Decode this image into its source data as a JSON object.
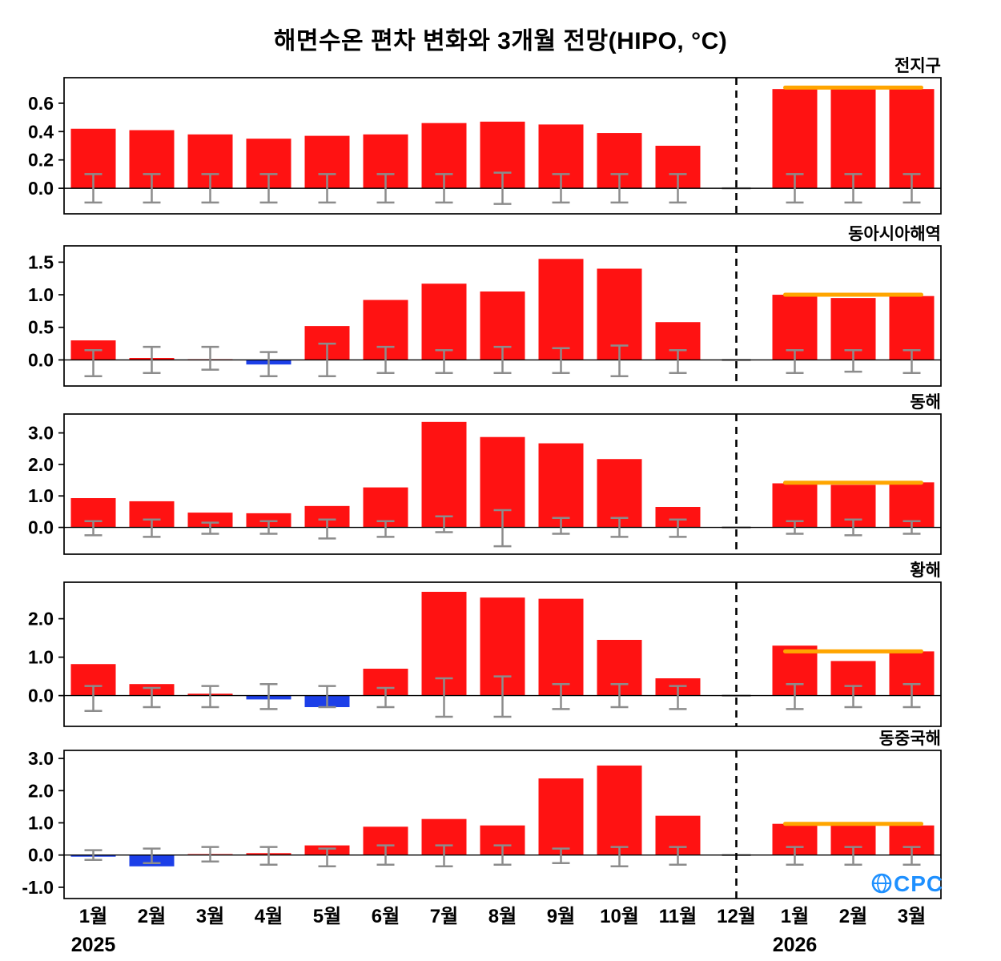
{
  "title": "해면수온 편차 변화와 3개월 전망(HIPO, °C)",
  "logo_text": "CPC",
  "colors": {
    "positive": "#FF1212",
    "negative": "#1C3FE8",
    "error": "#8C8C8C",
    "forecast_line": "#FFA500",
    "axis": "#000000",
    "nodata": "#9A9A9A",
    "logo": "#1E90FF"
  },
  "x_axis": {
    "categories": [
      "1월",
      "2월",
      "3월",
      "4월",
      "5월",
      "6월",
      "7월",
      "8월",
      "9월",
      "10월",
      "11월",
      "12월",
      "1월",
      "2월",
      "3월"
    ],
    "year_left": "2025",
    "year_right": "2026",
    "divider_index": 11
  },
  "chart_data": [
    {
      "type": "bar",
      "label": "전지구",
      "values": [
        0.42,
        0.41,
        0.38,
        0.35,
        0.37,
        0.38,
        0.46,
        0.47,
        0.45,
        0.39,
        0.3,
        null,
        0.7,
        0.7,
        0.7
      ],
      "errors": [
        [
          -0.1,
          0.1
        ],
        [
          -0.1,
          0.1
        ],
        [
          -0.1,
          0.1
        ],
        [
          -0.1,
          0.1
        ],
        [
          -0.1,
          0.1
        ],
        [
          -0.1,
          0.1
        ],
        [
          -0.1,
          0.1
        ],
        [
          -0.11,
          0.11
        ],
        [
          -0.1,
          0.1
        ],
        [
          -0.1,
          0.1
        ],
        [
          -0.1,
          0.1
        ],
        null,
        [
          -0.1,
          0.1
        ],
        [
          -0.1,
          0.1
        ],
        [
          -0.1,
          0.1
        ]
      ],
      "yticks": [
        0.0,
        0.2,
        0.4,
        0.6
      ],
      "ylim": [
        -0.18,
        0.78
      ],
      "forecast_line": 0.71,
      "forecast_start_index": 12
    },
    {
      "type": "bar",
      "label": "동아시아해역",
      "values": [
        0.3,
        0.03,
        0.01,
        -0.07,
        0.52,
        0.92,
        1.17,
        1.05,
        1.55,
        1.4,
        0.58,
        null,
        1.0,
        0.95,
        0.98
      ],
      "errors": [
        [
          -0.25,
          0.15
        ],
        [
          -0.2,
          0.2
        ],
        [
          -0.15,
          0.2
        ],
        [
          -0.25,
          0.12
        ],
        [
          -0.25,
          0.25
        ],
        [
          -0.2,
          0.2
        ],
        [
          -0.2,
          0.15
        ],
        [
          -0.2,
          0.2
        ],
        [
          -0.2,
          0.18
        ],
        [
          -0.25,
          0.22
        ],
        [
          -0.2,
          0.15
        ],
        null,
        [
          -0.2,
          0.15
        ],
        [
          -0.18,
          0.15
        ],
        [
          -0.2,
          0.15
        ]
      ],
      "yticks": [
        0.0,
        0.5,
        1.0,
        1.5
      ],
      "ylim": [
        -0.4,
        1.75
      ],
      "forecast_line": 1.0,
      "forecast_start_index": 12
    },
    {
      "type": "bar",
      "label": "동해",
      "values": [
        0.93,
        0.83,
        0.47,
        0.45,
        0.68,
        1.27,
        3.35,
        2.87,
        2.67,
        2.17,
        0.65,
        null,
        1.4,
        1.35,
        1.43
      ],
      "errors": [
        [
          -0.25,
          0.2
        ],
        [
          -0.3,
          0.25
        ],
        [
          -0.2,
          0.15
        ],
        [
          -0.2,
          0.2
        ],
        [
          -0.35,
          0.25
        ],
        [
          -0.3,
          0.2
        ],
        [
          -0.15,
          0.35
        ],
        [
          -0.6,
          0.55
        ],
        [
          -0.2,
          0.3
        ],
        [
          -0.3,
          0.3
        ],
        [
          -0.3,
          0.25
        ],
        null,
        [
          -0.2,
          0.2
        ],
        [
          -0.25,
          0.25
        ],
        [
          -0.2,
          0.2
        ]
      ],
      "yticks": [
        0.0,
        1.0,
        2.0,
        3.0
      ],
      "ylim": [
        -0.85,
        3.6
      ],
      "forecast_line": 1.42,
      "forecast_start_index": 12
    },
    {
      "type": "bar",
      "label": "황해",
      "values": [
        0.82,
        0.3,
        0.05,
        -0.1,
        -0.3,
        0.7,
        2.7,
        2.55,
        2.52,
        1.45,
        0.45,
        null,
        1.3,
        0.9,
        1.15
      ],
      "errors": [
        [
          -0.4,
          0.25
        ],
        [
          -0.3,
          0.2
        ],
        [
          -0.3,
          0.25
        ],
        [
          -0.35,
          0.3
        ],
        [
          -0.3,
          0.25
        ],
        [
          -0.3,
          0.2
        ],
        [
          -0.55,
          0.45
        ],
        [
          -0.55,
          0.5
        ],
        [
          -0.35,
          0.3
        ],
        [
          -0.3,
          0.3
        ],
        [
          -0.35,
          0.25
        ],
        null,
        [
          -0.35,
          0.3
        ],
        [
          -0.3,
          0.25
        ],
        [
          -0.3,
          0.3
        ]
      ],
      "yticks": [
        0.0,
        1.0,
        2.0
      ],
      "ylim": [
        -0.8,
        2.95
      ],
      "forecast_line": 1.15,
      "forecast_start_index": 12
    },
    {
      "type": "bar",
      "label": "동중국해",
      "values": [
        -0.05,
        -0.35,
        0.03,
        0.06,
        0.3,
        0.88,
        1.12,
        0.92,
        2.38,
        2.78,
        1.22,
        null,
        0.97,
        0.92,
        0.92
      ],
      "errors": [
        [
          -0.15,
          0.15
        ],
        [
          -0.25,
          0.2
        ],
        [
          -0.2,
          0.25
        ],
        [
          -0.3,
          0.25
        ],
        [
          -0.35,
          0.2
        ],
        [
          -0.3,
          0.3
        ],
        [
          -0.35,
          0.3
        ],
        [
          -0.3,
          0.3
        ],
        [
          -0.25,
          0.2
        ],
        [
          -0.35,
          0.25
        ],
        [
          -0.3,
          0.25
        ],
        null,
        [
          -0.3,
          0.25
        ],
        [
          -0.3,
          0.25
        ],
        [
          -0.3,
          0.25
        ]
      ],
      "yticks": [
        -1.0,
        0.0,
        1.0,
        2.0,
        3.0
      ],
      "ylim": [
        -1.35,
        3.25
      ],
      "forecast_line": 0.97,
      "forecast_start_index": 12
    }
  ]
}
